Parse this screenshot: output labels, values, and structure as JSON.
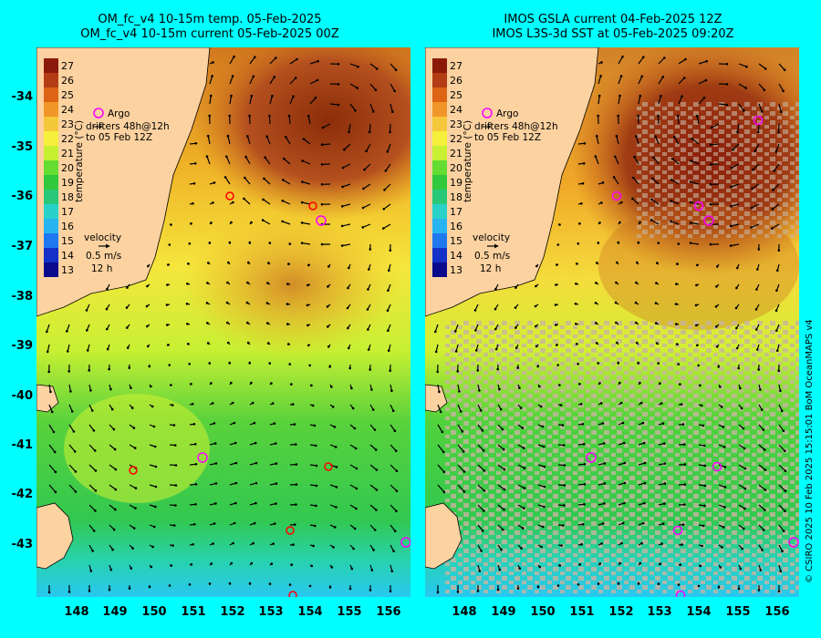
{
  "left_panel": {
    "title_line1": "OM_fc_v4  10-15m temp. 05-Feb-2025",
    "title_line2": "OM_fc_v4  10-15m current 05-Feb-2025 00Z"
  },
  "right_panel": {
    "title_line1": "IMOS GSLA current 04-Feb-2025 12Z",
    "title_line2": "IMOS L3S-3d SST at 05-Feb-2025 09:20Z"
  },
  "legend": {
    "argo": "Argo",
    "drifters_line1": "drifters 48h@12h",
    "drifters_line2": "to 05 Feb 12Z",
    "velocity": "velocity",
    "velocity_scale": "0.5 m/s",
    "velocity_time": "12 h",
    "colorbar_label": "temperature (°C)",
    "colorbar_ticks": [
      "27",
      "26",
      "25",
      "24",
      "23",
      "22",
      "21",
      "20",
      "19",
      "18",
      "17",
      "16",
      "15",
      "14",
      "13"
    ]
  },
  "axes": {
    "lat_labels": [
      "-34",
      "-35",
      "-36",
      "-37",
      "-38",
      "-39",
      "-40",
      "-41",
      "-42",
      "-43"
    ],
    "lon_labels": [
      "148",
      "149",
      "150",
      "151",
      "152",
      "153",
      "154",
      "155",
      "156"
    ]
  },
  "colors": {
    "land": "#fcd2a0",
    "no_data": "#c8b4a0",
    "argo": "#ff00ff",
    "drifter": "#ff0000"
  },
  "copyright": "© CSIRO 2025  10 Feb 2025 15:15:01 BoM OceanMAPS v4"
}
